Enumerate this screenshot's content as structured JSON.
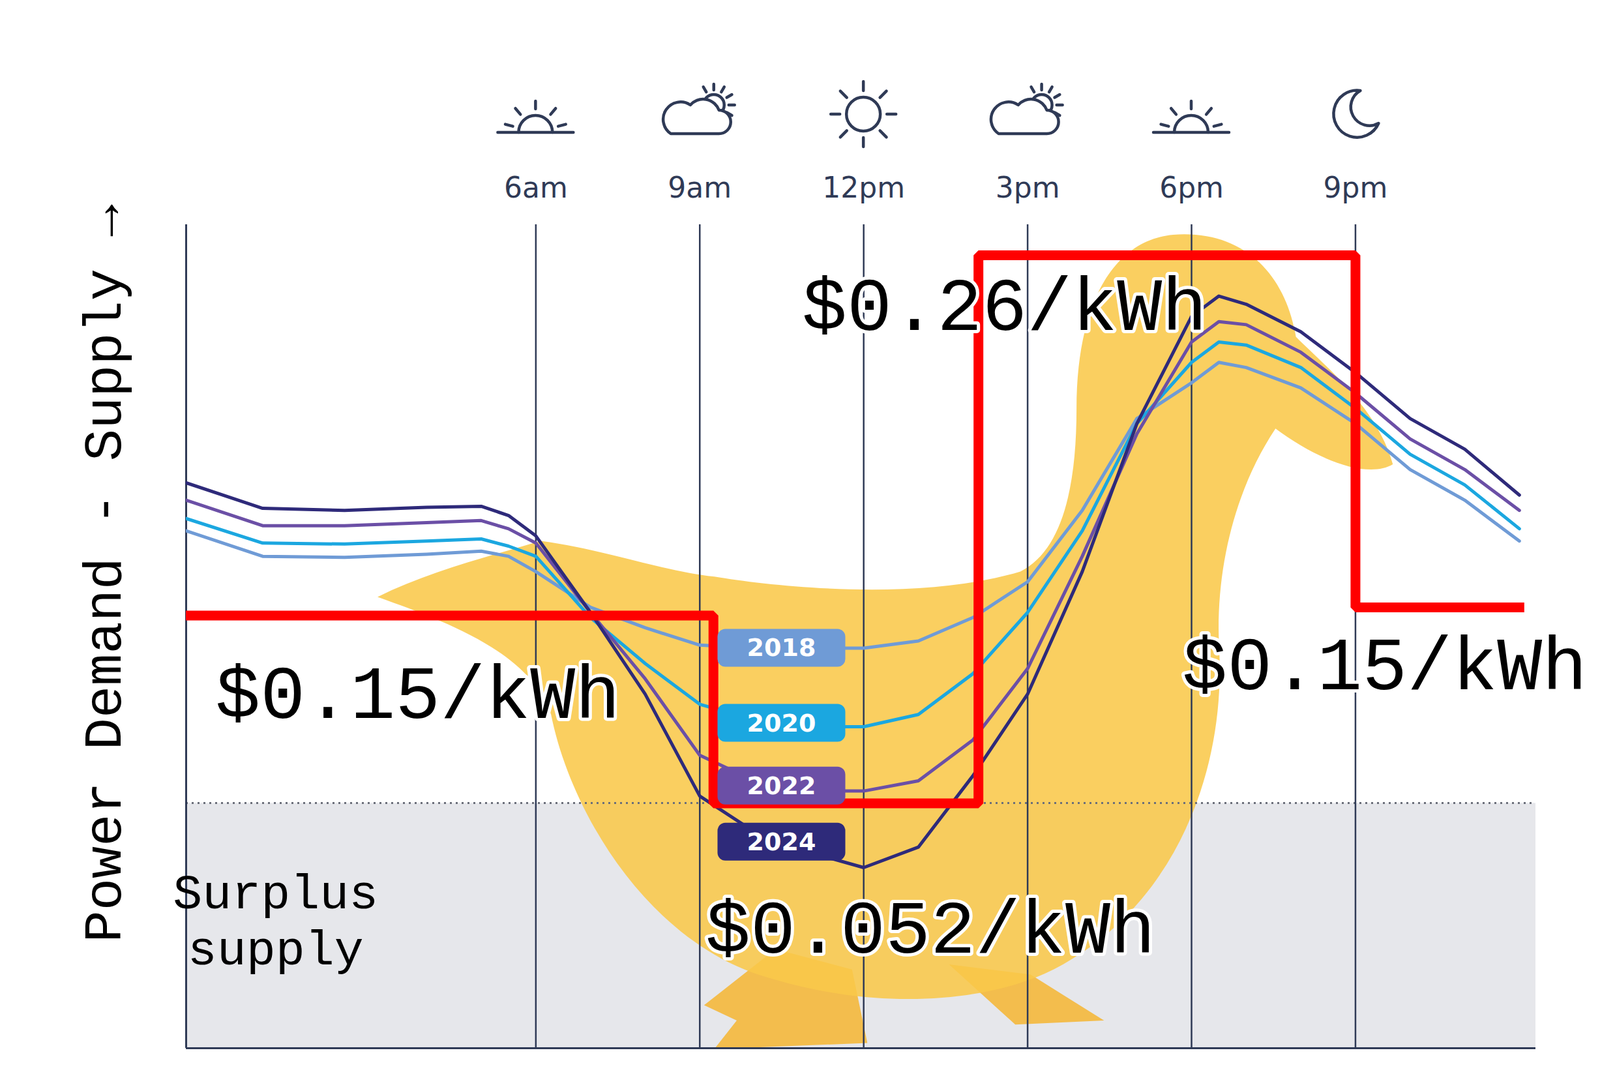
{
  "chart_data": {
    "type": "line",
    "ylabel": "Power Demand - Supply →",
    "x": [
      -0.4,
      1,
      2.5,
      4,
      5,
      5.5,
      6,
      7,
      8,
      9,
      10,
      11,
      12,
      13,
      14,
      15,
      16,
      17,
      18,
      18.5,
      19,
      20,
      21,
      22,
      23,
      24
    ],
    "xlim": [
      -0.4,
      24.3
    ],
    "xticks": [
      {
        "value": 6,
        "label": "6am"
      },
      {
        "value": 9,
        "label": "9am"
      },
      {
        "value": 12,
        "label": "12pm"
      },
      {
        "value": 15,
        "label": "3pm"
      },
      {
        "value": 18,
        "label": "6pm"
      },
      {
        "value": 21,
        "label": "9pm"
      }
    ],
    "ylim": [
      0,
      807
    ],
    "tick_labels": "x",
    "grid": true,
    "series": [
      {
        "name": "2018",
        "color": "#6f9bd6",
        "values": [
          507,
          482,
          481,
          484,
          487,
          482,
          467,
          432,
          412,
          395,
          392,
          392,
          392,
          399,
          422,
          457,
          527,
          617,
          652,
          672,
          667,
          647,
          612,
          567,
          537,
          497
        ]
      },
      {
        "name": "2020",
        "color": "#1ba7e0",
        "values": [
          519,
          495,
          494,
          497,
          499,
          492,
          482,
          422,
          377,
          337,
          322,
          315,
          315,
          327,
          367,
          427,
          507,
          612,
          672,
          692,
          689,
          667,
          627,
          582,
          552,
          509
        ]
      },
      {
        "name": "2022",
        "color": "#6b4fa6",
        "values": [
          537,
          512,
          512,
          515,
          517,
          509,
          495,
          427,
          362,
          287,
          262,
          252,
          252,
          262,
          302,
          372,
          482,
          602,
          692,
          712,
          709,
          682,
          642,
          597,
          567,
          527
        ]
      },
      {
        "name": "2024",
        "color": "#2e2a7a",
        "values": [
          554,
          529,
          527,
          530,
          531,
          522,
          502,
          427,
          347,
          247,
          212,
          192,
          177,
          197,
          267,
          347,
          467,
          612,
          717,
          737,
          729,
          702,
          662,
          617,
          587,
          542
        ]
      }
    ],
    "surplus": {
      "label": "Surplus supply",
      "level": 240,
      "color": "#e6e7eb"
    },
    "price_line": {
      "color": "#ff0000",
      "segments": [
        {
          "start": -0.4,
          "end": 9.25,
          "level": 424,
          "price": 0.15,
          "label": "$0.15/kWh"
        },
        {
          "start": 9.25,
          "end": 14.1,
          "level": 240,
          "price": 0.052,
          "label": "$0.052/kWh"
        },
        {
          "start": 14.1,
          "end": 21,
          "level": 777,
          "price": 0.26,
          "label": "$0.26/kWh"
        },
        {
          "start": 21,
          "end": 24,
          "level": 432,
          "price": 0.15,
          "label": "$0.15/kWh"
        }
      ]
    }
  }
}
